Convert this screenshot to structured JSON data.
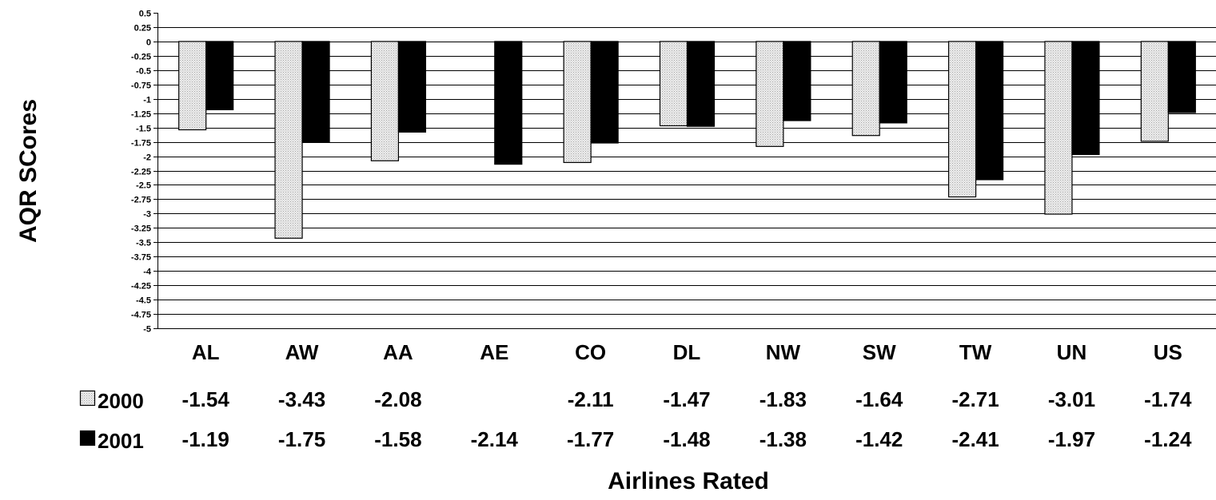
{
  "chart_data": {
    "type": "bar",
    "xlabel": "Airlines Rated",
    "ylabel": "AQR SCores",
    "ylim": [
      -5,
      0.5
    ],
    "ytick_step": 0.25,
    "ytick_labels": [
      "0.5",
      "0.25",
      "0",
      "-0.25",
      "-0.5",
      "-0.75",
      "-1",
      "-1.25",
      "-1.5",
      "-1.75",
      "-2",
      "-2.25",
      "-2.5",
      "-2.75",
      "-3",
      "-3.25",
      "-3.5",
      "-3.75",
      "-4",
      "-4.25",
      "-4.5",
      "-4.75",
      "-5"
    ],
    "grid": true,
    "categories": [
      "AL",
      "AW",
      "AA",
      "AE",
      "CO",
      "DL",
      "NW",
      "SW",
      "TW",
      "UN",
      "US"
    ],
    "series": [
      {
        "name": "2000",
        "color": "#e4e4e4",
        "pattern": "dotted",
        "values": [
          -1.54,
          -3.43,
          -2.08,
          null,
          -2.11,
          -1.47,
          -1.83,
          -1.64,
          -2.71,
          -3.01,
          -1.74
        ],
        "labels": [
          "-1.54",
          "-3.43",
          "-2.08",
          "",
          "-2.11",
          "-1.47",
          "-1.83",
          "-1.64",
          "-2.71",
          "-3.01",
          "-1.74"
        ]
      },
      {
        "name": "2001",
        "color": "#000000",
        "pattern": "solid",
        "values": [
          -1.19,
          -1.75,
          -1.58,
          -2.14,
          -1.77,
          -1.48,
          -1.38,
          -1.42,
          -2.41,
          -1.97,
          -1.24
        ],
        "labels": [
          "-1.19",
          "-1.75",
          "-1.58",
          "-2.14",
          "-1.77",
          "-1.48",
          "-1.38",
          "-1.42",
          "-2.41",
          "-1.97",
          "-1.24"
        ]
      }
    ],
    "legend": "data-table"
  }
}
